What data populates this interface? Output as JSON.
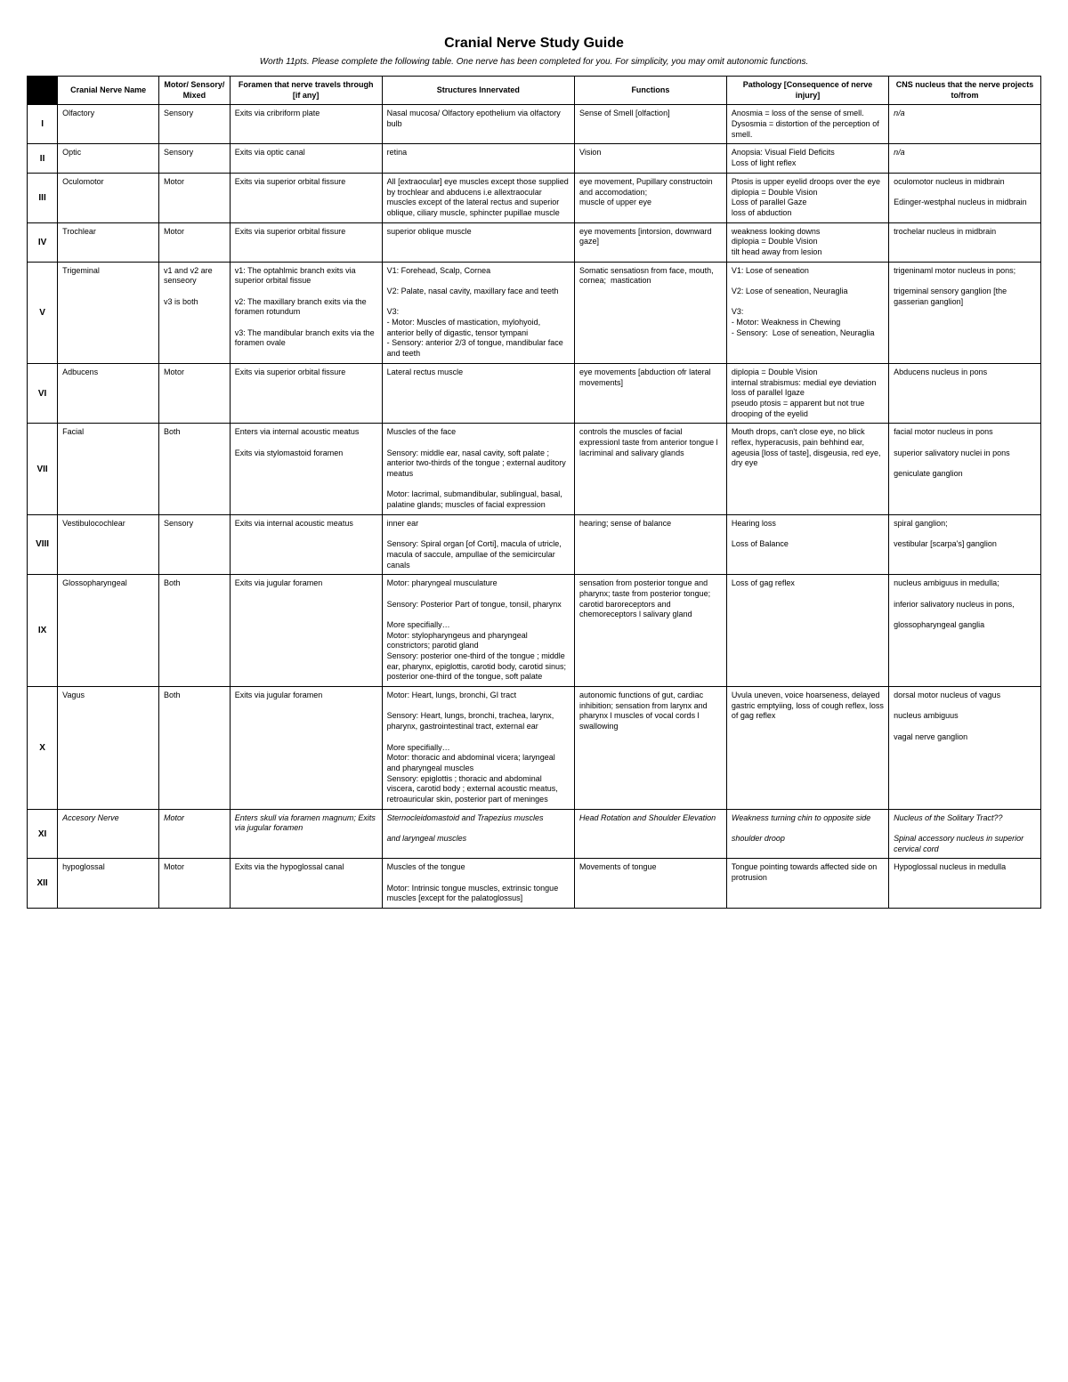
{
  "title": "Cranial Nerve Study Guide",
  "subtitle": "Worth 11pts.  Please complete the following table.  One nerve has been completed for you.  For simplicity, you may omit autonomic functions.",
  "headers": {
    "num": "",
    "name": "Cranial Nerve Name",
    "type": "Motor/ Sensory/ Mixed",
    "foramen": "Foramen that nerve travels through [if any]",
    "structures": "Structures Innervated",
    "functions": "Functions",
    "pathology": "Pathology [Consequence of nerve injury]",
    "nucleus": "CNS nucleus that the nerve projects to/from"
  },
  "rows": [
    {
      "num": "I",
      "name": "Olfactory",
      "type": "Sensory",
      "foramen": "Exits via cribriform plate",
      "structures": "Nasal mucosa/ Olfactory epothelium via olfactory bulb",
      "functions": "Sense of Smell [olfaction]",
      "pathology": "Anosmia = loss of the sense of smell.\nDysosmia = distortion of the perception of smell.",
      "nucleus": "n/a",
      "nucleus_italic": true
    },
    {
      "num": "II",
      "name": "Optic",
      "type": "Sensory",
      "foramen": "Exits via optic canal",
      "structures": "retina",
      "functions": "Vision",
      "pathology": "Anopsia: Visual Field Deficits\nLoss of light reflex",
      "nucleus": "n/a",
      "nucleus_italic": true
    },
    {
      "num": "III",
      "name": "Oculomotor",
      "type": "Motor",
      "foramen": "Exits via superior orbital fissure",
      "structures": "All [extraocular] eye muscles except those supplied by trochlear and abducens i.e allextraocular muscles except of the lateral rectus and superior oblique, ciliary muscle, sphincter pupillae muscle",
      "functions": "eye movement, Pupillary constructoin and accomodation;\nmuscle of upper eye",
      "pathology": "Ptosis is upper eyelid droops over the eye\ndiplopia = Double Vision\nLoss of parallel Gaze\nloss of abduction",
      "nucleus": "oculomotor nucleus in midbrain\n\nEdinger-westphal nucleus in midbrain"
    },
    {
      "num": "IV",
      "name": "Trochlear",
      "type": "Motor",
      "foramen": "Exits via superior orbital fissure",
      "structures": "superior oblique muscle",
      "functions": "eye movements [intorsion, downward gaze]",
      "pathology": "weakness looking downs\ndiplopia = Double Vision\ntilt head away from lesion",
      "nucleus": "trochelar nucleus in midbrain"
    },
    {
      "num": "V",
      "name": "Trigeminal",
      "type": "v1 and v2 are senseory\n\nv3 is both",
      "foramen": "v1: The optahlmic branch exits via superior orbital fissue\n\nv2: The maxillary branch exits via the foramen rotundum\n\nv3: The mandibular branch exits via the foramen ovale",
      "structures": "V1: Forehead, Scalp, Cornea\n\nV2: Palate, nasal cavity, maxillary face and teeth\n\nV3:\n- Motor: Muscles of mastication, mylohyoid, anterior belly of digastic, tensor tympani\n- Sensory: anterior 2/3 of tongue, mandibular face and teeth",
      "functions": "Somatic sensatiosn from face, mouth, cornea;  mastication",
      "pathology": "V1: Lose of seneation\n\nV2: Lose of seneation, Neuraglia\n\nV3:\n- Motor: Weakness in Chewing\n- Sensory:  Lose of seneation, Neuraglia",
      "nucleus": "trigeninaml motor nucleus in pons;\n\ntrigeminal sensory ganglion [the gasserian ganglion]"
    },
    {
      "num": "VI",
      "name": "Adbucens",
      "type": "Motor",
      "foramen": "Exits via superior orbital fissure",
      "structures": "Lateral rectus muscle",
      "functions": "eye movements [abduction ofr lateral movements]",
      "pathology": "diplopia = Double Vision\ninternal strabismus: medial eye deviation\nloss of parallel Igaze\npseudo ptosis = apparent but not true drooping of the eyelid",
      "nucleus": "Abducens nucleus in pons"
    },
    {
      "num": "VII",
      "name": "Facial",
      "type": "Both",
      "foramen": "Enters via internal acoustic meatus\n\nExits via stylomastoid foramen",
      "structures": "Muscles of the face\n\nSensory: middle ear, nasal cavity, soft palate ; anterior two-thirds of the tongue ; external auditory meatus\n\nMotor: lacrimal, submandibular, sublingual, basal, palatine glands; muscles of facial expression",
      "functions": "controls the muscles of facial expressionl taste from anterior tongue l lacriminal and salivary glands",
      "pathology": "Mouth drops, can't close eye, no blick reflex, hyperacusis, pain behhind ear, ageusia [loss of taste], disgeusia, red eye, dry eye",
      "nucleus": "facial motor nucleus in pons\n\nsuperior salivatory nuclei in pons\n\ngeniculate ganglion"
    },
    {
      "num": "VIII",
      "name": "Vestibulocochlear",
      "type": "Sensory",
      "foramen": "Exits via internal acoustic meatus",
      "structures": "inner ear\n\nSensory: Spiral organ [of Corti], macula of utricle, macula of saccule, ampullae of the semicircular canals",
      "functions": "hearing; sense of balance",
      "pathology": "Hearing loss\n\nLoss of Balance",
      "nucleus": "spiral ganglion;\n\nvestibular [scarpa's] ganglion"
    },
    {
      "num": "IX",
      "name": "Glossopharyngeal",
      "type": "Both",
      "foramen": "Exits via jugular foramen",
      "structures": "Motor: pharyngeal musculature\n\nSensory: Posterior Part of tongue, tonsil, pharynx\n\nMore specifially…\nMotor: stylopharyngeus and pharyngeal constrictors; parotid gland\nSensory: posterior one-third of the tongue ; middle ear, pharynx, epiglottis, carotid body, carotid sinus; posterior one-third of the tongue, soft palate",
      "functions": "sensation from posterior tongue and pharynx; taste from posterior tongue; carotid baroreceptors and chemoreceptors l salivary gland",
      "pathology": "Loss of gag reflex",
      "nucleus": "nucleus ambiguus in medulla;\n\ninferior salivatory nucleus in pons,\n\nglossopharyngeal ganglia"
    },
    {
      "num": "X",
      "name": "Vagus",
      "type": "Both",
      "foramen": "Exits via jugular foramen",
      "structures": "Motor: Heart, lungs, bronchi, GI tract\n\nSensory: Heart, lungs, bronchi, trachea, larynx, pharynx, gastrointestinal tract, external ear\n\nMore specifially…\nMotor: thoracic and abdominal vicera; laryngeal and pharyngeal muscles\nSensory: epiglottis ; thoracic and abdominal viscera, carotid body ; external acoustic meatus, retroauricular skin, posterior part of meninges",
      "functions": "autonomic functions of gut, cardiac inhibition; sensation from larynx and pharynx l muscles of vocal cords l swallowing",
      "pathology": "Uvula uneven, voice hoarseness, delayed gastric emptyiing, loss of cough reflex, loss of gag reflex",
      "nucleus": "dorsal motor nucleus of vagus\n\nnucleus ambiguus\n\nvagal nerve ganglion"
    },
    {
      "num": "XI",
      "name": "Accesory Nerve",
      "name_italic": true,
      "type": "Motor",
      "type_italic": true,
      "foramen": "Enters skull via foramen magnum; Exits via jugular foramen",
      "foramen_italic": true,
      "structures": "Sternocleidomastoid and Trapezius muscles\n\nand laryngeal muscles",
      "structures_italic": true,
      "functions": "Head Rotation and Shoulder Elevation",
      "functions_italic": true,
      "pathology": "Weakness turning chin to opposite side\n\nshoulder droop",
      "pathology_italic": true,
      "nucleus": "Nucleus of the Solitary Tract??\n\nSpinal accessory nucleus in superior cervical cord",
      "nucleus_italic": true
    },
    {
      "num": "XII",
      "name": "hypoglossal",
      "type": "Motor",
      "foramen": "Exits via the hypoglossal canal",
      "structures": "Muscles of the tongue\n\nMotor: Intrinsic tongue muscles, extrinsic tongue muscles [except for the palatoglossus]",
      "functions": "Movements of tongue",
      "pathology": "Tongue pointing towards affected side on protrusion",
      "nucleus": "Hypoglossal nucleus in medulla"
    }
  ]
}
